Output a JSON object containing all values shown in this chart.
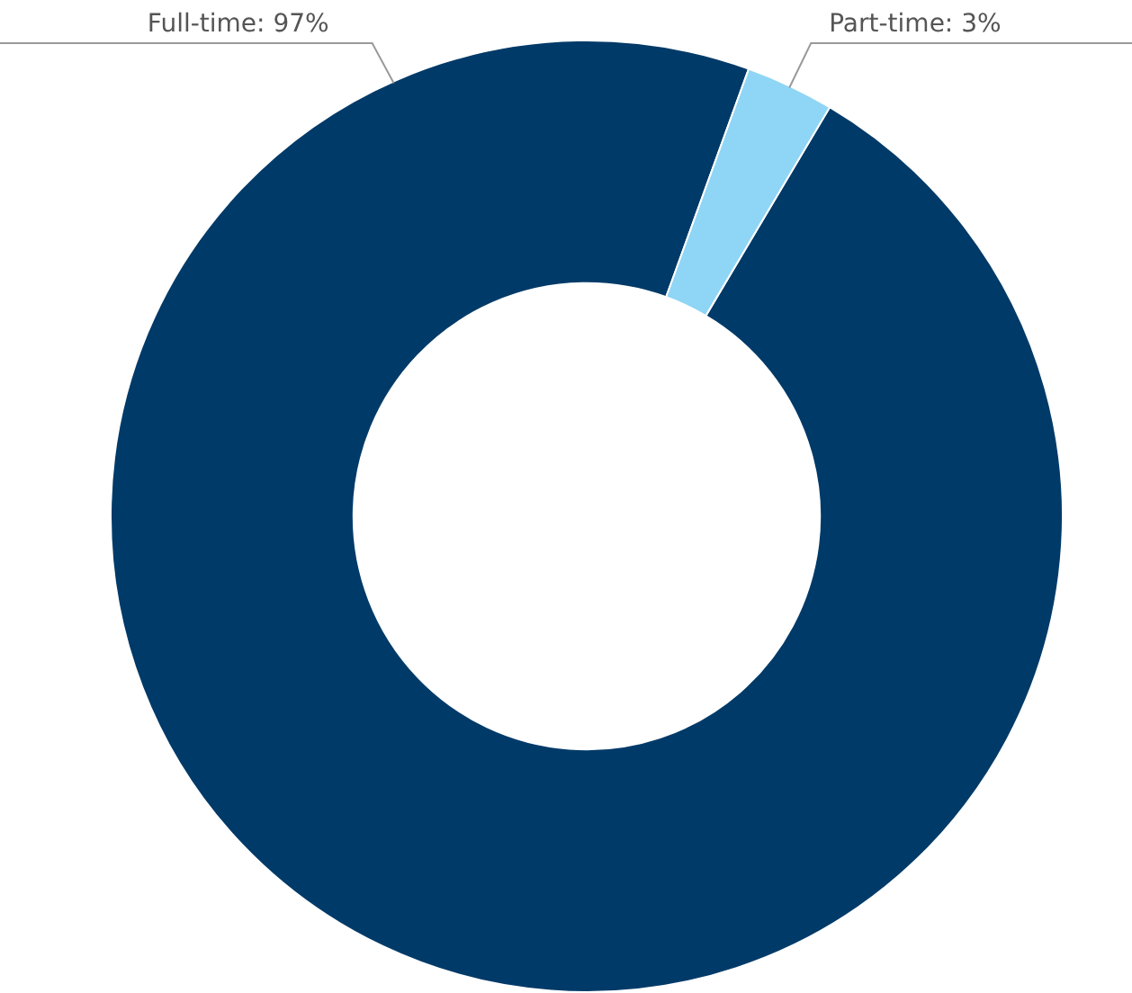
{
  "chart_data": {
    "type": "donut",
    "categories": [
      "Full-time",
      "Part-time"
    ],
    "values": [
      97,
      3
    ],
    "colors": [
      "#003a68",
      "#8fd5f5"
    ],
    "value_labels": [
      ": 97%",
      ": 3%"
    ],
    "legend": false
  }
}
